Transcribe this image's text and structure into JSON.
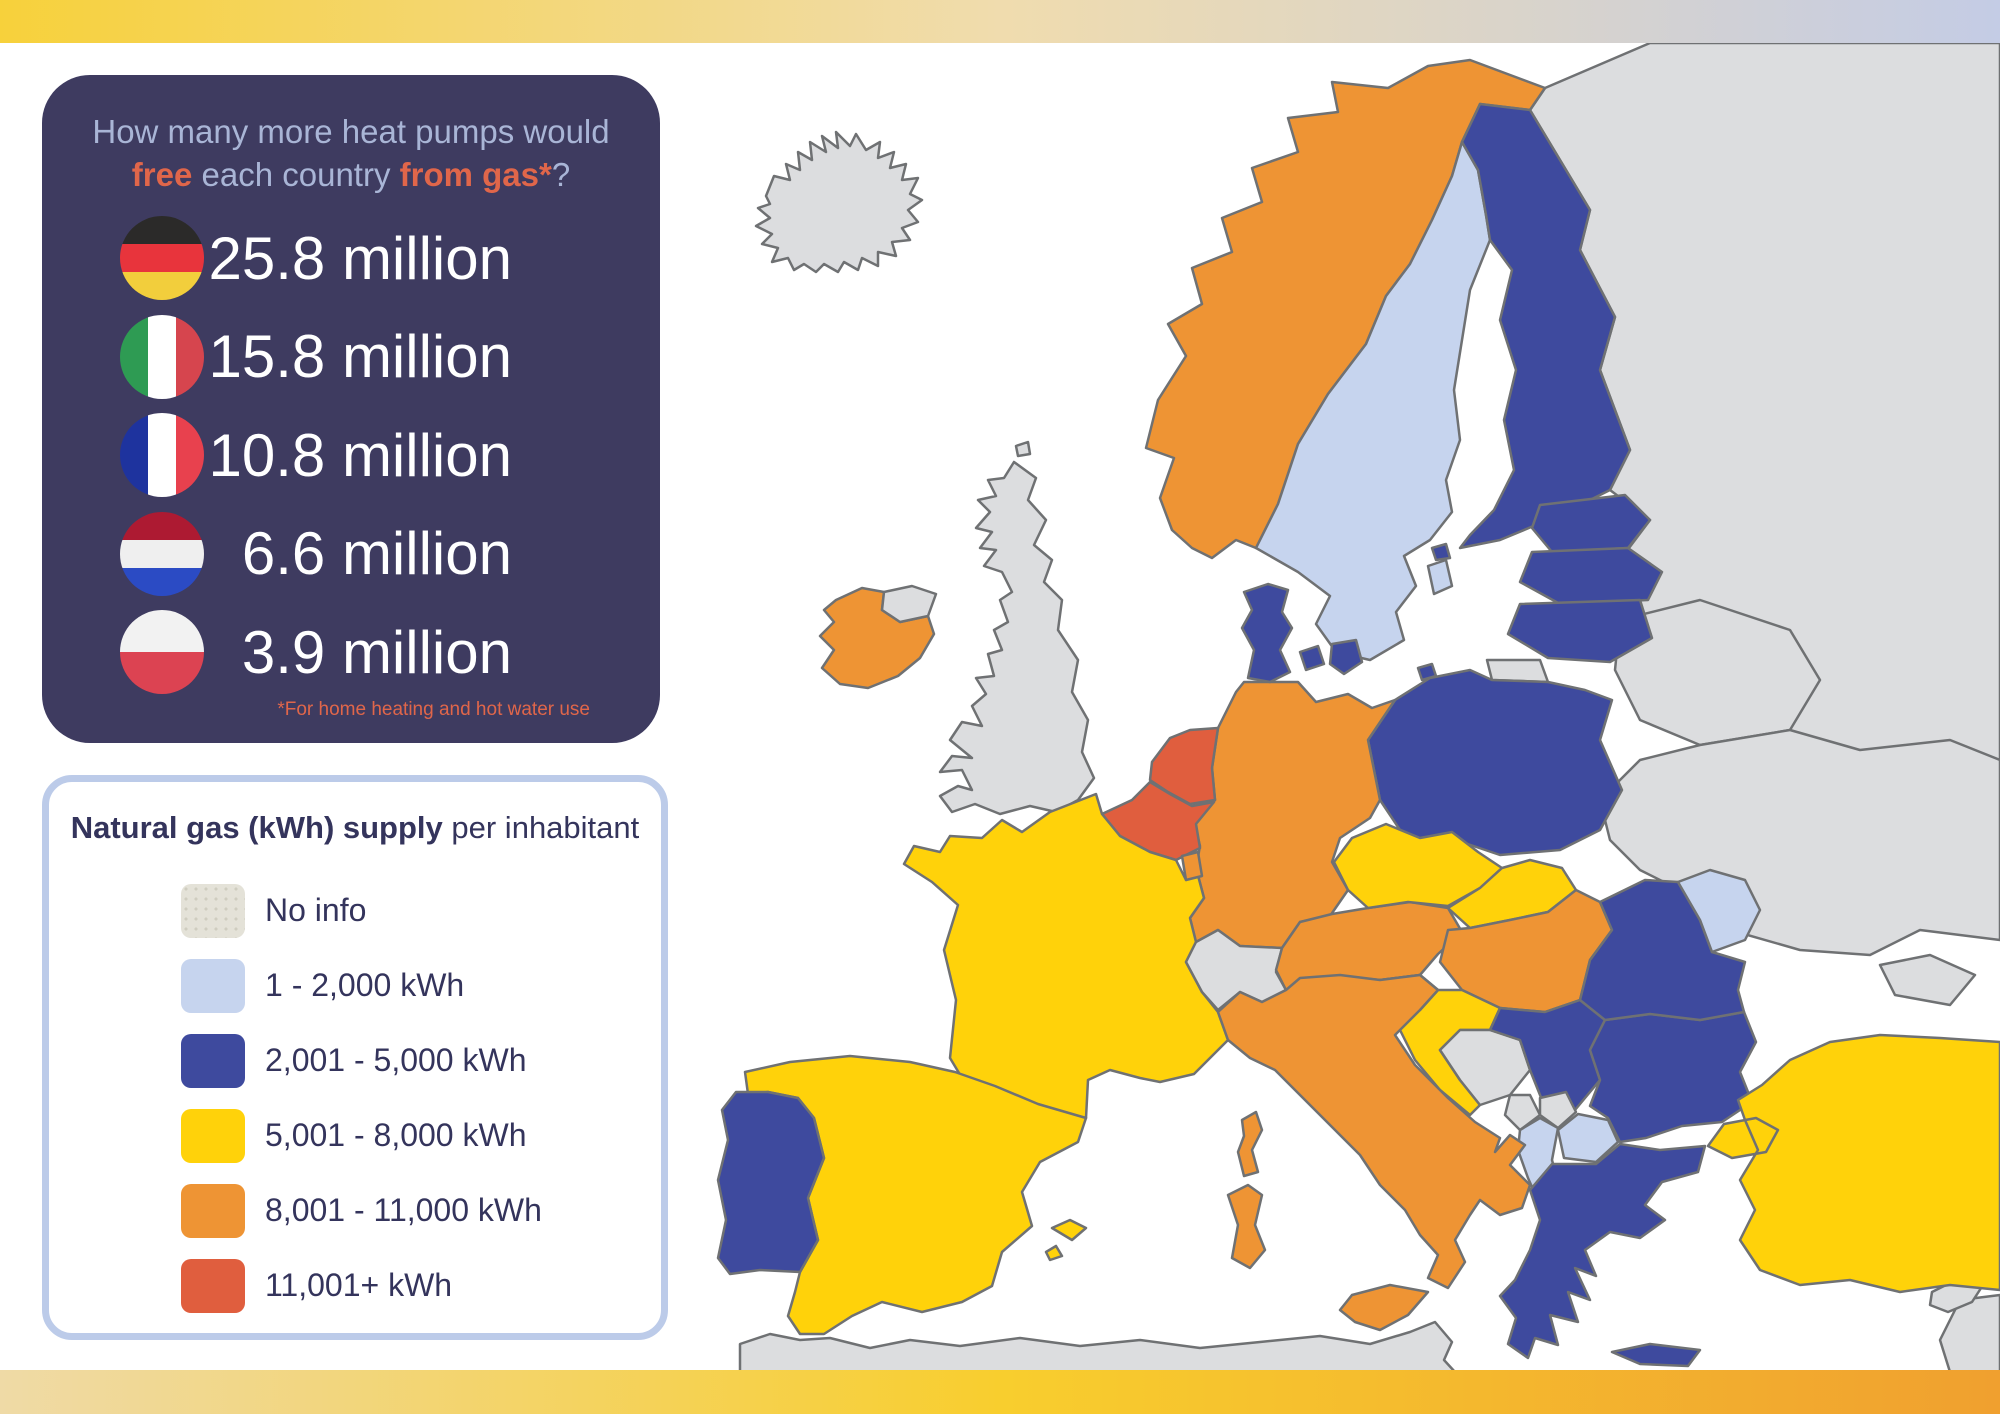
{
  "top_bar": {
    "gradient": [
      "#F7D13B",
      "#F0DCAE",
      "#C4CCE5"
    ]
  },
  "bottom_bar": {
    "gradient": [
      "#EFDAA6",
      "#F8CE2E",
      "#F0A02F"
    ]
  },
  "heat_pump_panel": {
    "bg": "#3E3B60",
    "title_color": "#A9B5D6",
    "accent_color": "#E0664A",
    "title_line1": [
      {
        "text": "How many more heat pumps would",
        "accent": false
      }
    ],
    "title_line2": [
      {
        "text": "free",
        "accent": true
      },
      {
        "text": " each country ",
        "accent": false
      },
      {
        "text": "from gas*",
        "accent": true
      },
      {
        "text": "?",
        "accent": false
      }
    ],
    "rows": [
      {
        "country": "Germany",
        "value": "25.8 million",
        "flag": {
          "direction": "horizontal",
          "stripes": [
            "#2B2A29",
            "#E8343C",
            "#F2CE3C"
          ]
        }
      },
      {
        "country": "Italy",
        "value": "15.8 million",
        "flag": {
          "direction": "vertical",
          "stripes": [
            "#2E9B53",
            "#FFFFFF",
            "#D6454E"
          ]
        }
      },
      {
        "country": "France",
        "value": "10.8 million",
        "flag": {
          "direction": "vertical",
          "stripes": [
            "#1E339E",
            "#FFFFFF",
            "#E8414E"
          ]
        }
      },
      {
        "country": "Netherlands",
        "value": "6.6 million",
        "flag": {
          "direction": "horizontal",
          "stripes": [
            "#AD1A32",
            "#EFEFEF",
            "#2B4BC4"
          ]
        }
      },
      {
        "country": "Poland",
        "value": "3.9 million",
        "flag": {
          "direction": "horizontal",
          "stripes": [
            "#F2F2F2",
            "#DC4352"
          ]
        }
      }
    ],
    "footnote": "*For home heating and hot water use"
  },
  "legend_panel": {
    "border_color": "#BCCBE9",
    "text_color": "#34345C",
    "title_bold": "Natural gas (kWh) supply",
    "title_regular": " per inhabitant",
    "items": [
      {
        "label": "No info",
        "color": "#E4E2D8",
        "category": "no_info",
        "texture": "dots"
      },
      {
        "label": "1 - 2,000 kWh",
        "color": "#C6D4EE",
        "category": "band1"
      },
      {
        "label": "2,001 - 5,000 kWh",
        "color": "#3E4A9E",
        "category": "band2"
      },
      {
        "label": "5,001 - 8,000 kWh",
        "color": "#FFD20A",
        "category": "band3"
      },
      {
        "label": "8,001 - 11,000 kWh",
        "color": "#EE9434",
        "category": "band4"
      },
      {
        "label": "11,001+ kWh",
        "color": "#E05E3E",
        "category": "band5"
      }
    ]
  },
  "map": {
    "sea_color": "#FFFFFF",
    "border_color": "#6F7173",
    "category_colors": {
      "no_info": "#DCDDDF",
      "band1": "#C6D4EE",
      "band2": "#3E4A9E",
      "band3": "#FFD20A",
      "band4": "#EE9434",
      "band5": "#E05E3E"
    },
    "countries": [
      {
        "id": "russia",
        "name": "Russia",
        "category": "no_info"
      },
      {
        "id": "belarus",
        "name": "Belarus",
        "category": "no_info"
      },
      {
        "id": "ukraine",
        "name": "Ukraine",
        "category": "no_info"
      },
      {
        "id": "north_africa",
        "name": "North Africa",
        "category": "no_info"
      },
      {
        "id": "cyprus",
        "name": "Cyprus",
        "category": "no_info"
      },
      {
        "id": "iceland",
        "name": "Iceland",
        "category": "no_info"
      },
      {
        "id": "norway",
        "name": "Norway",
        "category": "band4"
      },
      {
        "id": "sweden",
        "name": "Sweden",
        "category": "band1"
      },
      {
        "id": "finland",
        "name": "Finland",
        "category": "band2"
      },
      {
        "id": "estonia",
        "name": "Estonia",
        "category": "band2"
      },
      {
        "id": "latvia",
        "name": "Latvia",
        "category": "band2"
      },
      {
        "id": "lithuania",
        "name": "Lithuania",
        "category": "band2"
      },
      {
        "id": "kaliningrad",
        "name": "Kaliningrad",
        "category": "no_info"
      },
      {
        "id": "poland",
        "name": "Poland",
        "category": "band2"
      },
      {
        "id": "germany",
        "name": "Germany",
        "category": "band4"
      },
      {
        "id": "denmark",
        "name": "Denmark",
        "category": "band2"
      },
      {
        "id": "netherlands",
        "name": "Netherlands",
        "category": "band5"
      },
      {
        "id": "belgium",
        "name": "Belgium",
        "category": "band5"
      },
      {
        "id": "uk",
        "name": "United Kingdom",
        "category": "no_info"
      },
      {
        "id": "ireland",
        "name": "Ireland",
        "category": "band4"
      },
      {
        "id": "northern_ireland",
        "name": "Northern Ireland",
        "category": "no_info"
      },
      {
        "id": "france",
        "name": "France",
        "category": "band3"
      },
      {
        "id": "luxembourg",
        "name": "Luxembourg",
        "category": "band4"
      },
      {
        "id": "corsica",
        "name": "Corsica",
        "category": "band4"
      },
      {
        "id": "spain",
        "name": "Spain",
        "category": "band3"
      },
      {
        "id": "portugal",
        "name": "Portugal",
        "category": "band2"
      },
      {
        "id": "switzerland",
        "name": "Switzerland",
        "category": "no_info"
      },
      {
        "id": "austria",
        "name": "Austria",
        "category": "band4"
      },
      {
        "id": "czechia",
        "name": "Czechia",
        "category": "band3"
      },
      {
        "id": "slovakia",
        "name": "Slovakia",
        "category": "band3"
      },
      {
        "id": "hungary",
        "name": "Hungary",
        "category": "band4"
      },
      {
        "id": "slovenia",
        "name": "Slovenia",
        "category": "band2"
      },
      {
        "id": "croatia",
        "name": "Croatia",
        "category": "band3"
      },
      {
        "id": "bosnia",
        "name": "Bosnia and Herzegovina",
        "category": "no_info"
      },
      {
        "id": "serbia",
        "name": "Serbia",
        "category": "band2"
      },
      {
        "id": "montenegro",
        "name": "Montenegro",
        "category": "no_info"
      },
      {
        "id": "kosovo",
        "name": "Kosovo",
        "category": "no_info"
      },
      {
        "id": "albania",
        "name": "Albania",
        "category": "band1"
      },
      {
        "id": "north_macedonia",
        "name": "North Macedonia",
        "category": "band1"
      },
      {
        "id": "greece",
        "name": "Greece",
        "category": "band2"
      },
      {
        "id": "bulgaria",
        "name": "Bulgaria",
        "category": "band2"
      },
      {
        "id": "romania",
        "name": "Romania",
        "category": "band2"
      },
      {
        "id": "moldova",
        "name": "Moldova",
        "category": "band1"
      },
      {
        "id": "turkey",
        "name": "Turkey",
        "category": "band3"
      },
      {
        "id": "italy",
        "name": "Italy",
        "category": "band4"
      }
    ]
  }
}
